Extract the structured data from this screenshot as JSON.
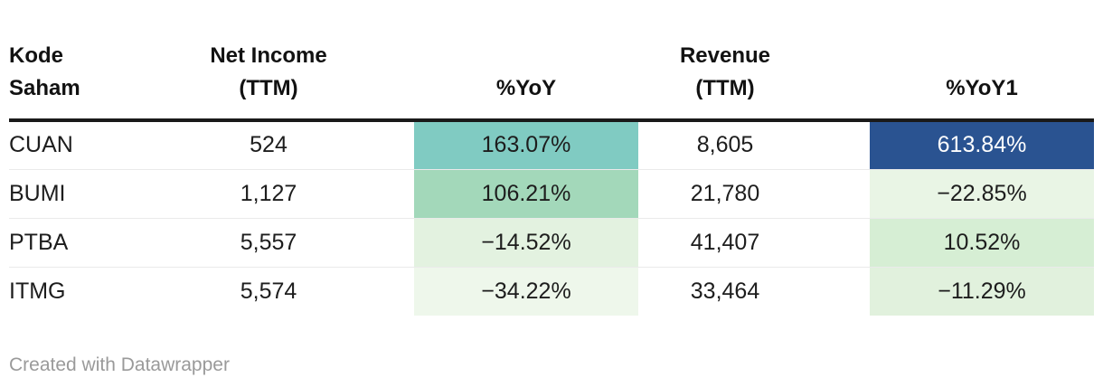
{
  "chart_data": {
    "type": "table",
    "columns": [
      "Kode Saham",
      "Net Income (TTM)",
      "%YoY",
      "Revenue (TTM)",
      "%YoY1"
    ],
    "rows": [
      {
        "kode_saham": "CUAN",
        "net_income_ttm": 524,
        "yoy_pct": 163.07,
        "revenue_ttm": 8605,
        "yoy1_pct": 613.84
      },
      {
        "kode_saham": "BUMI",
        "net_income_ttm": 1127,
        "yoy_pct": 106.21,
        "revenue_ttm": 21780,
        "yoy1_pct": -22.85
      },
      {
        "kode_saham": "PTBA",
        "net_income_ttm": 5557,
        "yoy_pct": -14.52,
        "revenue_ttm": 41407,
        "yoy1_pct": 10.52
      },
      {
        "kode_saham": "ITMG",
        "net_income_ttm": 5574,
        "yoy_pct": -34.22,
        "revenue_ttm": 33464,
        "yoy1_pct": -11.29
      }
    ],
    "layout": {
      "heatmap_columns": [
        "%YoY",
        "%YoY1"
      ],
      "grid": "horizontal-dividers",
      "legend_position": "none"
    }
  },
  "header": {
    "cols": [
      {
        "lines": [
          "Kode",
          "Saham"
        ]
      },
      {
        "lines": [
          "Net Income",
          "(TTM)"
        ]
      },
      {
        "lines": [
          "%YoY"
        ]
      },
      {
        "lines": [
          "Revenue",
          "(TTM)"
        ]
      },
      {
        "lines": [
          "%YoY1"
        ]
      }
    ]
  },
  "rows": [
    {
      "kode": "CUAN",
      "net_income": "524",
      "yoy": {
        "text": "163.07%",
        "bg": "#80cbc2",
        "fg": "#1d1d1d"
      },
      "revenue": "8,605",
      "yoy1": {
        "text": "613.84%",
        "bg": "#2a5391",
        "fg": "#ffffff"
      }
    },
    {
      "kode": "BUMI",
      "net_income": "1,127",
      "yoy": {
        "text": "106.21%",
        "bg": "#a3d8ba",
        "fg": "#1d1d1d"
      },
      "revenue": "21,780",
      "yoy1": {
        "text": "−22.85%",
        "bg": "#e9f5e5",
        "fg": "#1d1d1d"
      }
    },
    {
      "kode": "PTBA",
      "net_income": "5,557",
      "yoy": {
        "text": "−14.52%",
        "bg": "#e3f2e0",
        "fg": "#1d1d1d"
      },
      "revenue": "41,407",
      "yoy1": {
        "text": "10.52%",
        "bg": "#d6eed4",
        "fg": "#1d1d1d"
      }
    },
    {
      "kode": "ITMG",
      "net_income": "5,574",
      "yoy": {
        "text": "−34.22%",
        "bg": "#eef7eb",
        "fg": "#1d1d1d"
      },
      "revenue": "33,464",
      "yoy1": {
        "text": "−11.29%",
        "bg": "#e1f1dd",
        "fg": "#1d1d1d"
      }
    }
  ],
  "footer": {
    "attribution": "Created with Datawrapper"
  },
  "colors": {
    "header_rule": "#1a1a1a",
    "row_divider": "#eaeaea",
    "body_text": "#1d1d1d",
    "footer_text": "#9a9a9a",
    "heat_teal": "#80cbc2",
    "heat_green": "#a3d8ba",
    "heat_dark_blue": "#2a5391"
  }
}
